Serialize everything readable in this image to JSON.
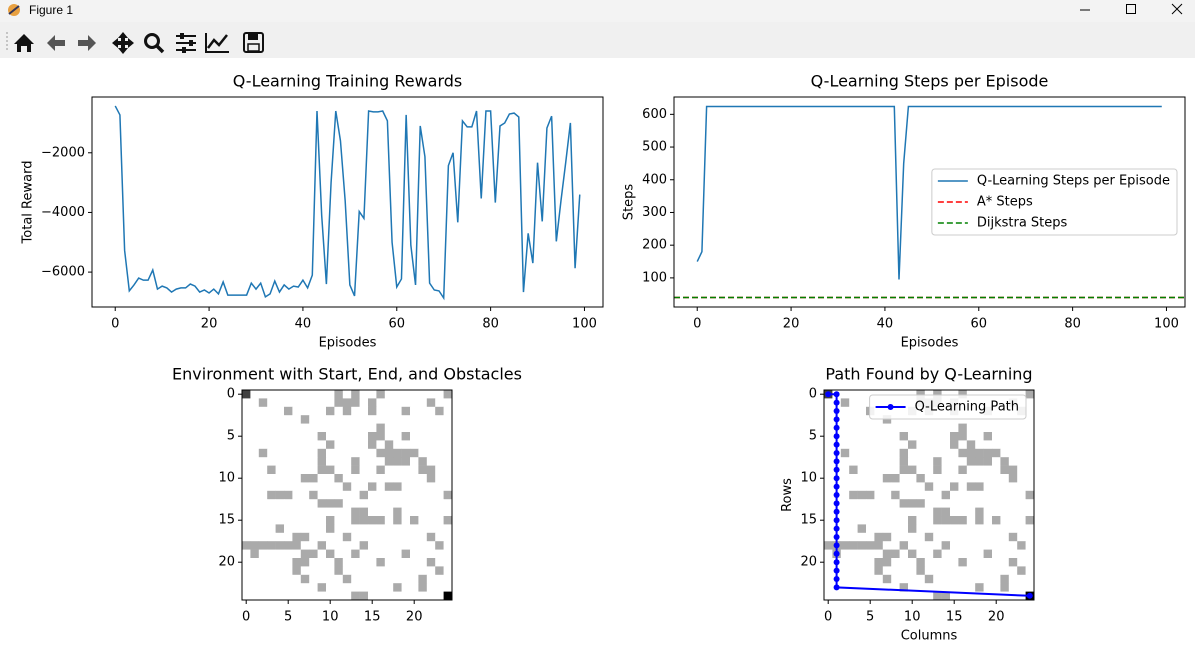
{
  "window_title": "Figure 1",
  "cmap": [
    "#ffffff",
    "#aaaaaa",
    "#404040",
    "#000000"
  ],
  "grid": [
    [
      2,
      0,
      0,
      0,
      0,
      0,
      0,
      0,
      0,
      0,
      0,
      1,
      0,
      1,
      0,
      0,
      1,
      0,
      0,
      0,
      0,
      0,
      0,
      0,
      1
    ],
    [
      0,
      0,
      1,
      0,
      0,
      0,
      0,
      0,
      0,
      0,
      0,
      1,
      1,
      1,
      0,
      1,
      0,
      0,
      0,
      0,
      0,
      0,
      1,
      0,
      0
    ],
    [
      0,
      0,
      0,
      0,
      0,
      1,
      0,
      0,
      0,
      0,
      1,
      0,
      1,
      0,
      0,
      1,
      0,
      0,
      0,
      1,
      0,
      0,
      0,
      1,
      0
    ],
    [
      0,
      0,
      0,
      0,
      0,
      0,
      0,
      1,
      0,
      0,
      0,
      0,
      0,
      0,
      0,
      0,
      0,
      0,
      0,
      0,
      0,
      0,
      0,
      0,
      0
    ],
    [
      0,
      0,
      0,
      0,
      0,
      0,
      0,
      0,
      0,
      0,
      0,
      0,
      0,
      0,
      0,
      0,
      1,
      0,
      0,
      0,
      0,
      0,
      0,
      0,
      0
    ],
    [
      0,
      0,
      0,
      0,
      0,
      0,
      0,
      0,
      0,
      1,
      0,
      0,
      0,
      0,
      0,
      1,
      1,
      0,
      0,
      1,
      0,
      0,
      0,
      0,
      0
    ],
    [
      0,
      0,
      0,
      0,
      0,
      0,
      0,
      0,
      0,
      0,
      1,
      0,
      0,
      0,
      0,
      1,
      0,
      1,
      0,
      0,
      0,
      0,
      0,
      0,
      0
    ],
    [
      0,
      0,
      1,
      0,
      0,
      0,
      0,
      0,
      0,
      1,
      0,
      0,
      0,
      0,
      0,
      0,
      1,
      1,
      1,
      1,
      1,
      0,
      0,
      0,
      0
    ],
    [
      0,
      0,
      0,
      0,
      0,
      0,
      0,
      0,
      0,
      1,
      0,
      0,
      0,
      1,
      0,
      0,
      0,
      1,
      1,
      1,
      0,
      1,
      0,
      0,
      0
    ],
    [
      0,
      0,
      0,
      1,
      0,
      0,
      0,
      0,
      0,
      1,
      1,
      0,
      0,
      1,
      0,
      0,
      1,
      0,
      0,
      0,
      0,
      1,
      1,
      0,
      0
    ],
    [
      0,
      0,
      0,
      0,
      0,
      0,
      0,
      1,
      1,
      0,
      0,
      1,
      0,
      0,
      0,
      0,
      0,
      0,
      0,
      0,
      0,
      0,
      1,
      0,
      0
    ],
    [
      0,
      0,
      0,
      0,
      0,
      0,
      0,
      0,
      0,
      0,
      0,
      0,
      1,
      0,
      0,
      1,
      0,
      1,
      1,
      0,
      0,
      0,
      0,
      0,
      0
    ],
    [
      0,
      0,
      0,
      1,
      1,
      1,
      0,
      0,
      1,
      0,
      0,
      0,
      0,
      0,
      1,
      0,
      0,
      0,
      0,
      0,
      0,
      0,
      0,
      0,
      1
    ],
    [
      0,
      0,
      0,
      0,
      0,
      0,
      0,
      0,
      0,
      1,
      1,
      1,
      0,
      0,
      0,
      0,
      0,
      0,
      0,
      0,
      0,
      0,
      0,
      0,
      0
    ],
    [
      0,
      0,
      0,
      0,
      0,
      0,
      0,
      0,
      0,
      0,
      0,
      0,
      0,
      1,
      1,
      0,
      0,
      0,
      1,
      0,
      0,
      0,
      0,
      0,
      0
    ],
    [
      0,
      0,
      0,
      0,
      0,
      0,
      0,
      0,
      0,
      0,
      1,
      0,
      0,
      1,
      1,
      1,
      1,
      0,
      1,
      0,
      1,
      0,
      0,
      0,
      1
    ],
    [
      0,
      0,
      0,
      0,
      1,
      0,
      0,
      0,
      0,
      0,
      1,
      0,
      0,
      0,
      0,
      0,
      0,
      0,
      0,
      0,
      0,
      0,
      0,
      0,
      0
    ],
    [
      0,
      0,
      0,
      0,
      0,
      0,
      1,
      1,
      0,
      0,
      0,
      0,
      1,
      0,
      0,
      0,
      0,
      0,
      0,
      0,
      0,
      0,
      1,
      0,
      0
    ],
    [
      1,
      1,
      1,
      1,
      1,
      1,
      1,
      0,
      0,
      1,
      0,
      0,
      0,
      0,
      1,
      0,
      0,
      0,
      0,
      0,
      0,
      0,
      0,
      1,
      0
    ],
    [
      0,
      1,
      0,
      0,
      0,
      0,
      0,
      1,
      1,
      0,
      1,
      0,
      0,
      1,
      0,
      0,
      0,
      0,
      0,
      1,
      0,
      0,
      0,
      0,
      0
    ],
    [
      0,
      0,
      0,
      0,
      0,
      0,
      1,
      1,
      0,
      0,
      0,
      1,
      0,
      0,
      0,
      0,
      1,
      0,
      0,
      0,
      0,
      0,
      1,
      0,
      0
    ],
    [
      0,
      0,
      0,
      0,
      0,
      0,
      1,
      0,
      0,
      0,
      0,
      1,
      0,
      0,
      0,
      0,
      0,
      0,
      0,
      0,
      0,
      0,
      0,
      1,
      0
    ],
    [
      0,
      0,
      0,
      0,
      0,
      0,
      0,
      1,
      0,
      0,
      0,
      0,
      1,
      0,
      0,
      0,
      0,
      0,
      0,
      0,
      0,
      1,
      0,
      0,
      0
    ],
    [
      0,
      0,
      0,
      0,
      0,
      0,
      0,
      0,
      0,
      1,
      0,
      0,
      0,
      0,
      0,
      0,
      0,
      0,
      1,
      0,
      0,
      1,
      0,
      0,
      0
    ],
    [
      0,
      0,
      0,
      0,
      0,
      0,
      0,
      0,
      0,
      0,
      0,
      0,
      0,
      1,
      1,
      0,
      0,
      0,
      0,
      0,
      0,
      0,
      0,
      0,
      3
    ]
  ],
  "chart_data": [
    {
      "type": "line",
      "title": "Q-Learning Training Rewards",
      "xlabel": "Episodes",
      "ylabel": "Total Reward",
      "x": [
        0,
        1,
        2,
        3,
        4,
        5,
        6,
        7,
        8,
        9,
        10,
        11,
        12,
        13,
        14,
        15,
        16,
        17,
        18,
        19,
        20,
        21,
        22,
        23,
        24,
        25,
        26,
        27,
        28,
        29,
        30,
        31,
        32,
        33,
        34,
        35,
        36,
        37,
        38,
        39,
        40,
        41,
        42,
        43,
        44,
        45,
        46,
        47,
        48,
        49,
        50,
        51,
        52,
        53,
        54,
        55,
        56,
        57,
        58,
        59,
        60,
        61,
        62,
        63,
        64,
        65,
        66,
        67,
        68,
        69,
        70,
        71,
        72,
        73,
        74,
        75,
        76,
        77,
        78,
        79,
        80,
        81,
        82,
        83,
        84,
        85,
        86,
        87,
        88,
        89,
        90,
        91,
        92,
        93,
        94,
        95,
        96,
        97,
        98,
        99
      ],
      "series": [
        {
          "color": "#1f77b4",
          "values": [
            -430,
            -730,
            -5270,
            -6630,
            -6430,
            -6200,
            -6270,
            -6270,
            -5930,
            -6570,
            -6470,
            -6530,
            -6670,
            -6570,
            -6530,
            -6530,
            -6400,
            -6470,
            -6670,
            -6600,
            -6700,
            -6570,
            -6730,
            -6330,
            -6770,
            -6770,
            -6770,
            -6770,
            -6770,
            -6370,
            -6570,
            -6370,
            -6830,
            -6730,
            -6300,
            -6670,
            -6430,
            -6570,
            -6470,
            -6500,
            -6270,
            -6530,
            -6100,
            -600,
            -4100,
            -6400,
            -3000,
            -600,
            -1600,
            -3600,
            -6430,
            -6800,
            -3970,
            -4200,
            -600,
            -630,
            -630,
            -600,
            -930,
            -5000,
            -6500,
            -6230,
            -730,
            -5100,
            -6430,
            -1100,
            -2130,
            -6370,
            -6600,
            -6630,
            -6870,
            -2430,
            -2000,
            -4330,
            -930,
            -1130,
            -1130,
            -600,
            -3530,
            -600,
            -600,
            -3670,
            -1100,
            -1000,
            -700,
            -670,
            -800,
            -6670,
            -4700,
            -5700,
            -2330,
            -4300,
            -1170,
            -770,
            -4970,
            -3600,
            -2330,
            -1000,
            -5870,
            -3400
          ]
        }
      ],
      "xlim": [
        -4.95,
        103.95
      ],
      "xticks": [
        0,
        20,
        40,
        60,
        80,
        100
      ],
      "ylim": [
        -7170,
        -130
      ],
      "yticks": [
        {
          "value": -2000,
          "label": "−2000"
        },
        {
          "value": -4000,
          "label": "−4000"
        },
        {
          "value": -6000,
          "label": "−6000"
        }
      ]
    },
    {
      "type": "line",
      "title": "Q-Learning Steps per Episode",
      "xlabel": "Episodes",
      "ylabel": "Steps",
      "legend": "center right",
      "x": [
        0,
        1,
        2,
        3,
        4,
        5,
        6,
        7,
        8,
        9,
        10,
        11,
        12,
        13,
        14,
        15,
        16,
        17,
        18,
        19,
        20,
        21,
        22,
        23,
        24,
        25,
        26,
        27,
        28,
        29,
        30,
        31,
        32,
        33,
        34,
        35,
        36,
        37,
        38,
        39,
        40,
        41,
        42,
        43,
        44,
        45,
        46,
        47,
        48,
        49,
        50,
        51,
        52,
        53,
        54,
        55,
        56,
        57,
        58,
        59,
        60,
        61,
        62,
        63,
        64,
        65,
        66,
        67,
        68,
        69,
        70,
        71,
        72,
        73,
        74,
        75,
        76,
        77,
        78,
        79,
        80,
        81,
        82,
        83,
        84,
        85,
        86,
        87,
        88,
        89,
        90,
        91,
        92,
        93,
        94,
        95,
        96,
        97,
        98,
        99
      ],
      "series": [
        {
          "name": "Q-Learning Steps per Episode",
          "color": "#1f77b4",
          "values": [
            150,
            180,
            624,
            624,
            624,
            624,
            624,
            624,
            624,
            624,
            624,
            624,
            624,
            624,
            624,
            624,
            624,
            624,
            624,
            624,
            624,
            624,
            624,
            624,
            624,
            624,
            624,
            624,
            624,
            624,
            624,
            624,
            624,
            624,
            624,
            624,
            624,
            624,
            624,
            624,
            624,
            624,
            624,
            95,
            450,
            624,
            624,
            624,
            624,
            624,
            624,
            624,
            624,
            624,
            624,
            624,
            624,
            624,
            624,
            624,
            624,
            624,
            624,
            624,
            624,
            624,
            624,
            624,
            624,
            624,
            624,
            624,
            624,
            624,
            624,
            624,
            624,
            624,
            624,
            624,
            624,
            624,
            624,
            624,
            624,
            624,
            624,
            624,
            624,
            624,
            624,
            624,
            624,
            624,
            624,
            624,
            624,
            624,
            624,
            624
          ]
        },
        {
          "name": "A* Steps",
          "color": "#ff0000",
          "dash": true,
          "value": 40
        },
        {
          "name": "Dijkstra Steps",
          "color": "#008000",
          "dash": true,
          "value": 40
        }
      ],
      "xlim": [
        -4.95,
        103.95
      ],
      "xticks": [
        0,
        20,
        40,
        60,
        80,
        100
      ],
      "ylim": [
        11,
        653
      ],
      "yticks": [
        100,
        200,
        300,
        400,
        500,
        600
      ]
    },
    {
      "type": "image",
      "title": "Environment with Start, End, and Obstacles",
      "xlim": [
        -0.5,
        24.5
      ],
      "xticks": [
        0,
        5,
        10,
        15,
        20
      ],
      "ylim": [
        24.5,
        -0.5
      ],
      "yticks": [
        0,
        5,
        10,
        15,
        20
      ]
    },
    {
      "type": "line",
      "title": "Path Found by Q-Learning",
      "xlabel": "Columns",
      "ylabel": "Rows",
      "legend": "upper right",
      "image_background": true,
      "x": [
        0,
        1,
        1,
        1,
        1,
        1,
        1,
        1,
        1,
        1,
        1,
        1,
        1,
        1,
        1,
        1,
        1,
        1,
        1,
        1,
        1,
        1,
        1,
        1,
        1,
        24
      ],
      "series": [
        {
          "name": "Q-Learning Path",
          "color": "#0000ff",
          "marker": true,
          "values": [
            0,
            0,
            1,
            2,
            3,
            4,
            5,
            6,
            7,
            8,
            9,
            10,
            11,
            12,
            13,
            14,
            15,
            16,
            17,
            18,
            19,
            20,
            21,
            22,
            23,
            24
          ]
        }
      ],
      "xlim": [
        -0.5,
        24.5
      ],
      "xticks": [
        0,
        5,
        10,
        15,
        20
      ],
      "ylim": [
        24.5,
        -0.5
      ],
      "yticks": [
        0,
        5,
        10,
        15,
        20
      ]
    }
  ]
}
